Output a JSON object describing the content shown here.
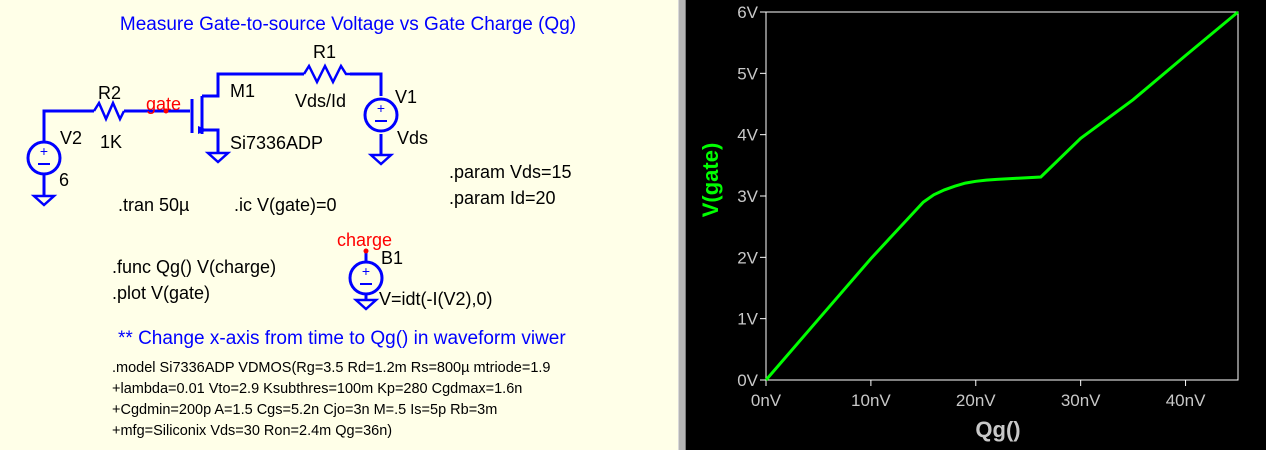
{
  "schematic": {
    "title": "Measure Gate-to-source Voltage vs Gate Charge (Qg)",
    "components": {
      "r1": {
        "name": "R1",
        "value": "Vds/Id"
      },
      "r2": {
        "name": "R2",
        "value": "1K"
      },
      "m1": {
        "name": "M1",
        "model": "Si7336ADP"
      },
      "v1": {
        "name": "V1",
        "value": "Vds"
      },
      "v2": {
        "name": "V2",
        "value": "6"
      },
      "b1": {
        "name": "B1",
        "value": "V=idt(-I(V2),0)"
      }
    },
    "net_labels": {
      "gate": "gate",
      "charge": "charge"
    },
    "directives": {
      "tran": ".tran 50µ",
      "ic": ".ic V(gate)=0",
      "param_vds": ".param Vds=15",
      "param_id": ".param Id=20",
      "func": ".func Qg() V(charge)",
      "plot": ".plot V(gate)"
    },
    "comment": "** Change x-axis from time to Qg() in waveform viwer",
    "model_lines": [
      ".model Si7336ADP VDMOS(Rg=3.5 Rd=1.2m Rs=800µ mtriode=1.9",
      "+lambda=0.01 Vto=2.9 Ksubthres=100m Kp=280 Cgdmax=1.6n",
      "+Cgdmin=200p A=1.5 Cgs=5.2n Cjo=3n M=.5 Is=5p Rb=3m",
      "+mfg=Siliconix Vds=30 Ron=2.4m Qg=36n)"
    ],
    "colors": {
      "wire": "#0000ff",
      "text": "#000000",
      "net_label": "#ff0000",
      "comment": "#0000ff",
      "background": "#ffffe8"
    }
  },
  "chart_data": {
    "type": "line",
    "xlabel": "Qg()",
    "ylabel": "V(gate)",
    "x_ticks": [
      "0nV",
      "10nV",
      "20nV",
      "30nV",
      "40nV"
    ],
    "y_ticks": [
      "0V",
      "1V",
      "2V",
      "3V",
      "4V",
      "5V",
      "6V"
    ],
    "xlim": [
      0,
      45
    ],
    "ylim": [
      0,
      6
    ],
    "grid": false,
    "series": [
      {
        "color": "#00ff00",
        "x": [
          0,
          5,
          10,
          15,
          16,
          17,
          18,
          19,
          20,
          21,
          22,
          24,
          26.2,
          30,
          35,
          40,
          45
        ],
        "y": [
          0,
          0.99,
          1.98,
          2.9,
          3.02,
          3.1,
          3.16,
          3.21,
          3.24,
          3.26,
          3.27,
          3.29,
          3.31,
          3.94,
          4.57,
          5.29,
          6.0
        ]
      }
    ],
    "colors": {
      "background": "#000000",
      "axes": "#ffffff",
      "labels": "#c8c8c8",
      "ylabel": "#00ff00"
    }
  }
}
